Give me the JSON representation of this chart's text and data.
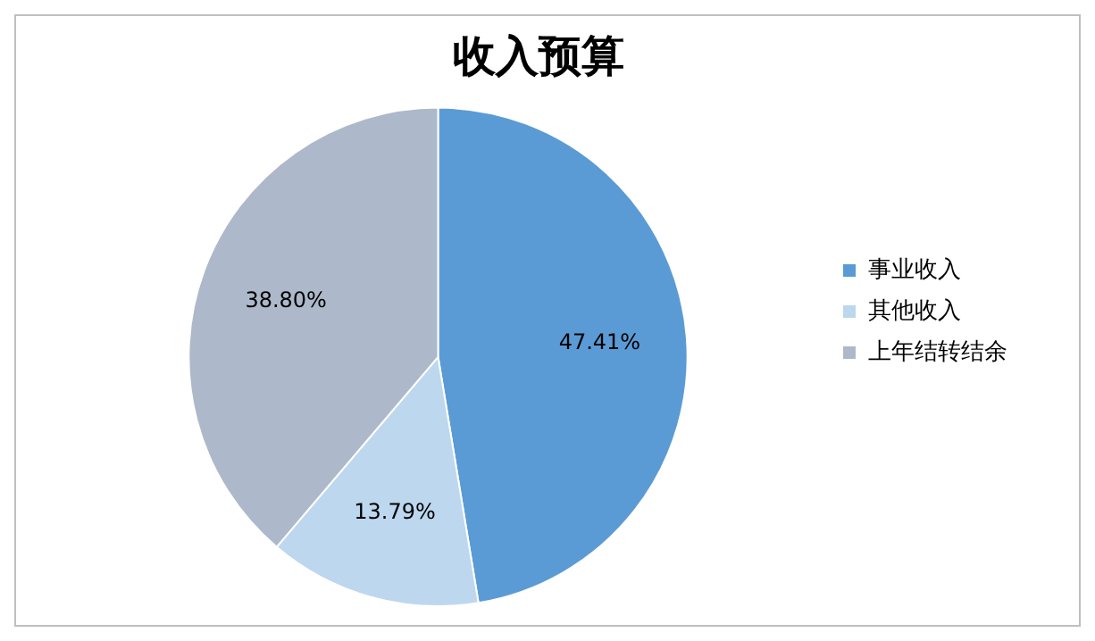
{
  "chart_data": {
    "type": "pie",
    "title": "收入预算",
    "categories": [
      "事业收入",
      "其他收入",
      "上年结转结余"
    ],
    "values": [
      47.41,
      13.79,
      38.8
    ],
    "value_labels": [
      "47.41%",
      "13.79%",
      "38.80%"
    ],
    "colors": [
      "#5b9bd5",
      "#bdd7ee",
      "#adb9ca"
    ],
    "legend": "right"
  }
}
